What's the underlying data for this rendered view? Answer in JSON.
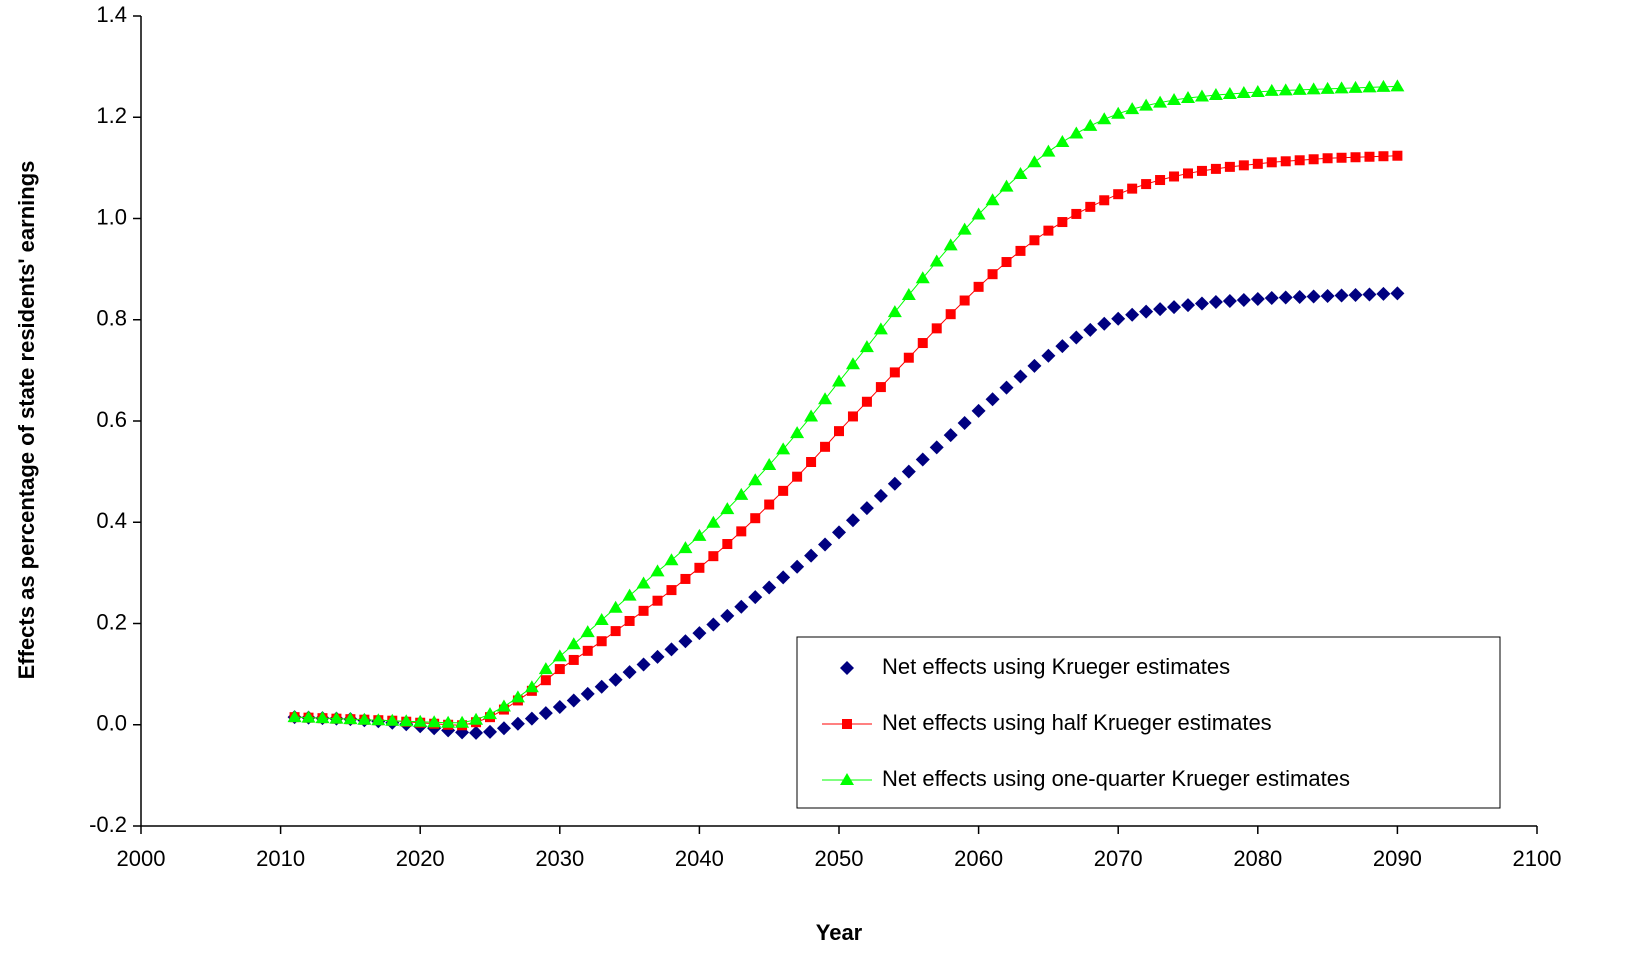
{
  "chart_data": {
    "type": "line",
    "x_label": "Year",
    "y_label": "Effects as percentage of state residents' earnings",
    "x": [
      2011,
      2012,
      2013,
      2014,
      2015,
      2016,
      2017,
      2018,
      2019,
      2020,
      2021,
      2022,
      2023,
      2024,
      2025,
      2026,
      2027,
      2028,
      2029,
      2030,
      2031,
      2032,
      2033,
      2034,
      2035,
      2036,
      2037,
      2038,
      2039,
      2040,
      2041,
      2042,
      2043,
      2044,
      2045,
      2046,
      2047,
      2048,
      2049,
      2050,
      2051,
      2052,
      2053,
      2054,
      2055,
      2056,
      2057,
      2058,
      2059,
      2060,
      2061,
      2062,
      2063,
      2064,
      2065,
      2066,
      2067,
      2068,
      2069,
      2070,
      2071,
      2072,
      2073,
      2074,
      2075,
      2076,
      2077,
      2078,
      2079,
      2080,
      2081,
      2082,
      2083,
      2084,
      2085,
      2086,
      2087,
      2088,
      2089,
      2090
    ],
    "series": [
      {
        "name": "Net effects using Krueger estimates",
        "color": "#000080",
        "marker": "diamond",
        "line": false,
        "values": [
          0.015,
          0.014,
          0.013,
          0.012,
          0.011,
          0.009,
          0.007,
          0.004,
          0.001,
          -0.003,
          -0.007,
          -0.011,
          -0.015,
          -0.016,
          -0.014,
          -0.007,
          0.002,
          0.012,
          0.023,
          0.035,
          0.048,
          0.061,
          0.075,
          0.089,
          0.104,
          0.119,
          0.134,
          0.149,
          0.165,
          0.181,
          0.198,
          0.215,
          0.233,
          0.252,
          0.271,
          0.291,
          0.312,
          0.334,
          0.356,
          0.38,
          0.404,
          0.428,
          0.452,
          0.476,
          0.5,
          0.524,
          0.548,
          0.572,
          0.596,
          0.62,
          0.643,
          0.666,
          0.688,
          0.709,
          0.729,
          0.748,
          0.765,
          0.78,
          0.792,
          0.802,
          0.81,
          0.816,
          0.821,
          0.825,
          0.829,
          0.832,
          0.835,
          0.837,
          0.839,
          0.841,
          0.843,
          0.844,
          0.845,
          0.846,
          0.847,
          0.848,
          0.849,
          0.85,
          0.851,
          0.852
        ]
      },
      {
        "name": "Net effects using half Krueger estimates",
        "color": "#ff0000",
        "marker": "square",
        "line": true,
        "values": [
          0.015,
          0.014,
          0.013,
          0.012,
          0.011,
          0.01,
          0.009,
          0.008,
          0.006,
          0.004,
          0.002,
          0.0,
          -0.001,
          0.005,
          0.015,
          0.03,
          0.048,
          0.067,
          0.088,
          0.11,
          0.128,
          0.146,
          0.165,
          0.185,
          0.205,
          0.225,
          0.245,
          0.266,
          0.288,
          0.31,
          0.333,
          0.357,
          0.382,
          0.408,
          0.435,
          0.462,
          0.49,
          0.519,
          0.549,
          0.58,
          0.609,
          0.638,
          0.667,
          0.696,
          0.725,
          0.754,
          0.783,
          0.811,
          0.838,
          0.865,
          0.89,
          0.914,
          0.936,
          0.957,
          0.976,
          0.993,
          1.009,
          1.023,
          1.036,
          1.048,
          1.059,
          1.068,
          1.076,
          1.083,
          1.089,
          1.094,
          1.098,
          1.102,
          1.105,
          1.108,
          1.111,
          1.113,
          1.115,
          1.117,
          1.119,
          1.12,
          1.121,
          1.122,
          1.123,
          1.124
        ]
      },
      {
        "name": "Net effects using one-quarter Krueger estimates",
        "color": "#00ff00",
        "marker": "triangle",
        "line": true,
        "values": [
          0.015,
          0.014,
          0.013,
          0.012,
          0.011,
          0.01,
          0.009,
          0.008,
          0.007,
          0.006,
          0.005,
          0.004,
          0.004,
          0.01,
          0.021,
          0.036,
          0.054,
          0.074,
          0.11,
          0.135,
          0.159,
          0.183,
          0.207,
          0.231,
          0.255,
          0.279,
          0.303,
          0.325,
          0.349,
          0.373,
          0.399,
          0.426,
          0.454,
          0.483,
          0.513,
          0.544,
          0.576,
          0.609,
          0.643,
          0.678,
          0.712,
          0.746,
          0.781,
          0.815,
          0.849,
          0.882,
          0.915,
          0.947,
          0.978,
          1.008,
          1.036,
          1.063,
          1.088,
          1.111,
          1.132,
          1.151,
          1.168,
          1.183,
          1.196,
          1.207,
          1.216,
          1.223,
          1.229,
          1.234,
          1.238,
          1.241,
          1.244,
          1.246,
          1.248,
          1.25,
          1.252,
          1.253,
          1.254,
          1.255,
          1.256,
          1.257,
          1.258,
          1.259,
          1.26,
          1.261
        ]
      }
    ],
    "xlim": [
      2000,
      2100
    ],
    "xticks": [
      2000,
      2010,
      2020,
      2030,
      2040,
      2050,
      2060,
      2070,
      2080,
      2090,
      2100
    ],
    "ylim": [
      -0.2,
      1.4
    ],
    "yticks": [
      -0.2,
      {
        "value": 0,
        "label": "0.0"
      },
      0.2,
      0.4,
      0.6,
      0.8,
      {
        "value": 1,
        "label": "1.0"
      },
      1.2,
      1.4
    ],
    "grid": false,
    "legend": "lower right"
  }
}
